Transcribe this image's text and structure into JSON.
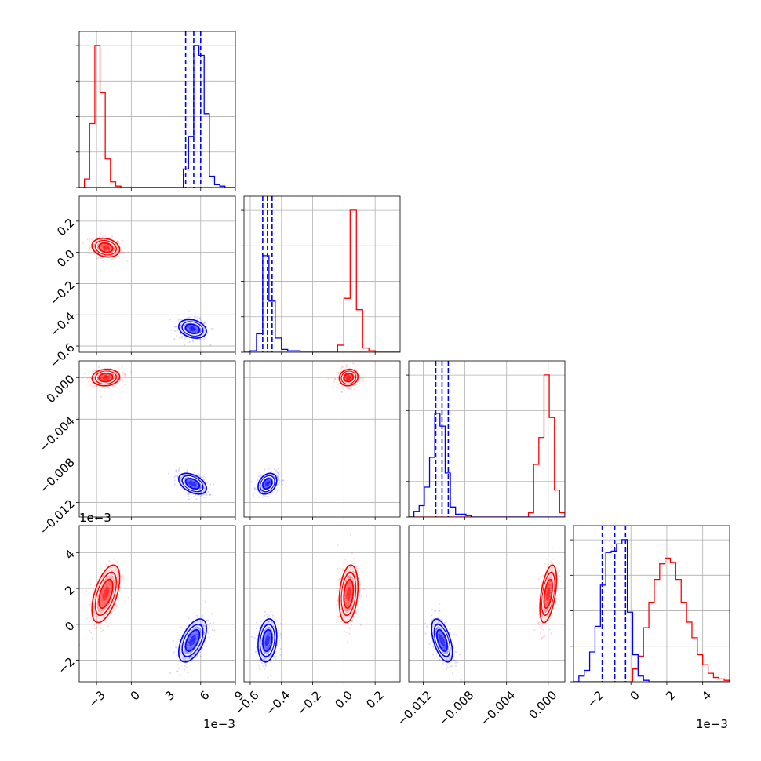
{
  "chart_data": {
    "type": "scatter",
    "subtype": "corner-plot",
    "grid": true,
    "colors": {
      "a": "#ff0000",
      "b": "#0000ff",
      "grid": "#b0b0b0",
      "frame": "#000000"
    },
    "params": [
      {
        "range": [
          -0.0045,
          0.009
        ],
        "ticks": [
          -0.003,
          0,
          0.003,
          0.006,
          0.009
        ],
        "tick_labels": [
          "−3",
          "0",
          "3",
          "6",
          "9"
        ],
        "offset_label": "1e−3"
      },
      {
        "range": [
          -0.64,
          0.36
        ],
        "ticks": [
          -0.6,
          -0.4,
          -0.2,
          0.0,
          0.2
        ],
        "tick_labels": [
          "−0.6",
          "−0.4",
          "−0.2",
          "0.0",
          "0.2"
        ],
        "offset_label": ""
      },
      {
        "range": [
          -0.0134,
          0.0016
        ],
        "ticks": [
          -0.012,
          -0.008,
          -0.004,
          0.0
        ],
        "tick_labels": [
          "−0.012",
          "−0.008",
          "−0.004",
          "0.000"
        ],
        "offset_label": ""
      },
      {
        "range": [
          -0.0032,
          0.0055
        ],
        "ticks": [
          -0.002,
          0.0,
          0.002,
          0.004
        ],
        "tick_labels": [
          "−2",
          "0",
          "2",
          "4"
        ],
        "offset_label": "1e−3"
      }
    ],
    "series": [
      {
        "key": "a",
        "mean": [
          -0.0022,
          0.03,
          0.0,
          0.0017
        ],
        "std": [
          0.0006,
          0.03,
          0.0004,
          0.0008
        ]
      },
      {
        "key": "b",
        "mean": [
          0.0053,
          -0.49,
          -0.0102,
          -0.0009
        ],
        "std": [
          0.0006,
          0.03,
          0.0005,
          0.0006
        ]
      }
    ],
    "quantile_lines": [
      [
        0.0047,
        0.0054,
        0.006
      ],
      [
        -0.52,
        -0.49,
        -0.46
      ],
      [
        -0.0108,
        -0.0102,
        -0.0096
      ],
      [
        -0.0016,
        -0.0009,
        -0.0003
      ]
    ],
    "histograms": [
      {
        "edges": [
          -0.0045,
          -0.00405,
          -0.0036,
          -0.00315,
          -0.0027,
          -0.00225,
          -0.0018,
          -0.00135,
          -0.0009,
          -0.00045,
          0,
          0.00045,
          0.0009,
          0.00135,
          0.0018,
          0.00225,
          0.0027,
          0.00315,
          0.0036,
          0.00405,
          0.0045,
          0.00495,
          0.0054,
          0.00585,
          0.0063,
          0.00675,
          0.0072,
          0.00765,
          0.0081,
          0.00855,
          0.009
        ],
        "a": [
          0,
          0.06,
          0.45,
          1.0,
          0.67,
          0.2,
          0.04,
          0.01,
          0,
          0,
          0,
          0,
          0,
          0,
          0,
          0,
          0,
          0,
          0,
          0,
          0,
          0,
          0,
          0,
          0,
          0,
          0,
          0,
          0,
          0
        ],
        "b": [
          0,
          0,
          0,
          0,
          0,
          0,
          0,
          0,
          0,
          0,
          0,
          0,
          0,
          0,
          0,
          0,
          0,
          0,
          0,
          0,
          0.13,
          0.36,
          1.0,
          0.93,
          0.52,
          0.08,
          0.02,
          0.01,
          0,
          0
        ]
      },
      {
        "edges": [
          -0.64,
          -0.6,
          -0.56,
          -0.52,
          -0.48,
          -0.44,
          -0.4,
          -0.36,
          -0.32,
          -0.28,
          -0.24,
          -0.2,
          -0.16,
          -0.12,
          -0.08,
          -0.04,
          0,
          0.04,
          0.08,
          0.12,
          0.16,
          0.2,
          0.24,
          0.28,
          0.32,
          0.36
        ],
        "a": [
          0,
          0,
          0,
          0,
          0,
          0,
          0,
          0,
          0,
          0,
          0,
          0,
          0,
          0,
          0,
          0.05,
          0.38,
          1.0,
          0.3,
          0.03,
          0.01,
          0,
          0,
          0,
          0
        ],
        "b": [
          0,
          0.01,
          0.13,
          0.68,
          0.36,
          0.1,
          0.02,
          0.01,
          0.01,
          0,
          0,
          0,
          0,
          0,
          0,
          0,
          0,
          0,
          0,
          0,
          0,
          0,
          0,
          0,
          0
        ]
      },
      {
        "edges": [
          -0.0134,
          -0.0129,
          -0.0124,
          -0.0119,
          -0.0114,
          -0.0109,
          -0.0104,
          -0.0099,
          -0.0094,
          -0.0089,
          -0.0084,
          -0.0079,
          -0.0074,
          -0.0069,
          -0.0064,
          -0.0059,
          -0.0054,
          -0.0049,
          -0.0044,
          -0.0039,
          -0.0034,
          -0.0029,
          -0.0024,
          -0.0019,
          -0.0014,
          -0.0009,
          -0.0004,
          0.0001,
          0.0006,
          0.0011,
          0.0016
        ],
        "a": [
          0,
          0,
          0,
          0,
          0,
          0,
          0,
          0,
          0,
          0,
          0,
          0,
          0,
          0,
          0,
          0,
          0,
          0,
          0,
          0,
          0,
          0,
          0,
          0.03,
          0.37,
          0.56,
          1.0,
          0.7,
          0.19,
          0.03
        ],
        "b": [
          0,
          0.04,
          0.08,
          0.21,
          0.42,
          0.73,
          0.64,
          0.31,
          0.07,
          0.02,
          0.02,
          0.01,
          0,
          0,
          0,
          0,
          0,
          0,
          0,
          0,
          0,
          0,
          0,
          0,
          0,
          0,
          0,
          0,
          0,
          0
        ]
      },
      {
        "edges": [
          -0.0032,
          -0.0029,
          -0.0026,
          -0.0023,
          -0.002,
          -0.0017,
          -0.0014,
          -0.0011,
          -0.0008,
          -0.0005,
          -0.0002,
          0.0001,
          0.0004,
          0.0007,
          0.001,
          0.0013,
          0.0016,
          0.0019,
          0.0022,
          0.0025,
          0.0028,
          0.0031,
          0.0034,
          0.0037,
          0.004,
          0.0043,
          0.0046,
          0.0049,
          0.0052,
          0.0055
        ],
        "a": [
          0,
          0,
          0,
          0,
          0,
          0,
          0,
          0,
          0,
          0,
          0,
          0.09,
          0.18,
          0.38,
          0.56,
          0.72,
          0.83,
          0.87,
          0.84,
          0.72,
          0.56,
          0.42,
          0.31,
          0.19,
          0.12,
          0.06,
          0.03,
          0.02,
          0.01
        ],
        "b": [
          0,
          0.04,
          0.08,
          0.21,
          0.39,
          0.68,
          0.91,
          0.92,
          0.97,
          1.0,
          0.49,
          0.19,
          0.04,
          0.01,
          0,
          0,
          0,
          0,
          0,
          0,
          0,
          0,
          0,
          0,
          0,
          0,
          0,
          0,
          0
        ]
      }
    ]
  }
}
